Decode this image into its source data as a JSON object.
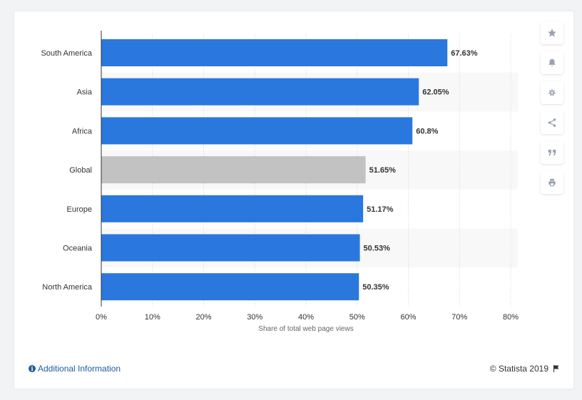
{
  "chart_data": {
    "type": "bar",
    "orientation": "horizontal",
    "categories": [
      "South America",
      "Asia",
      "Africa",
      "Global",
      "Europe",
      "Oceania",
      "North America"
    ],
    "values": [
      67.63,
      62.05,
      60.8,
      51.65,
      51.17,
      50.53,
      50.35
    ],
    "value_labels": [
      "67.63%",
      "62.05%",
      "60.8%",
      "51.65%",
      "51.17%",
      "50.53%",
      "50.35%"
    ],
    "highlight": "Global",
    "xlabel": "Share of total web page views",
    "ylabel": "",
    "xlim": [
      0,
      80
    ],
    "ticks": [
      0,
      10,
      20,
      30,
      40,
      50,
      60,
      70,
      80
    ],
    "tick_labels": [
      "0%",
      "10%",
      "20%",
      "30%",
      "40%",
      "50%",
      "60%",
      "70%",
      "80%"
    ],
    "grid": true,
    "colors": {
      "bar": "#2a78dd",
      "highlight": "#c2c2c2",
      "band": "#f8f8f8",
      "grid": "#cfd4d9"
    }
  },
  "toolbar": {
    "items": [
      {
        "name": "star-icon"
      },
      {
        "name": "bell-icon"
      },
      {
        "name": "gear-icon"
      },
      {
        "name": "share-icon"
      },
      {
        "name": "quote-icon"
      },
      {
        "name": "print-icon"
      }
    ]
  },
  "footer": {
    "info_label": "Additional Information",
    "copyright": "© Statista 2019"
  }
}
